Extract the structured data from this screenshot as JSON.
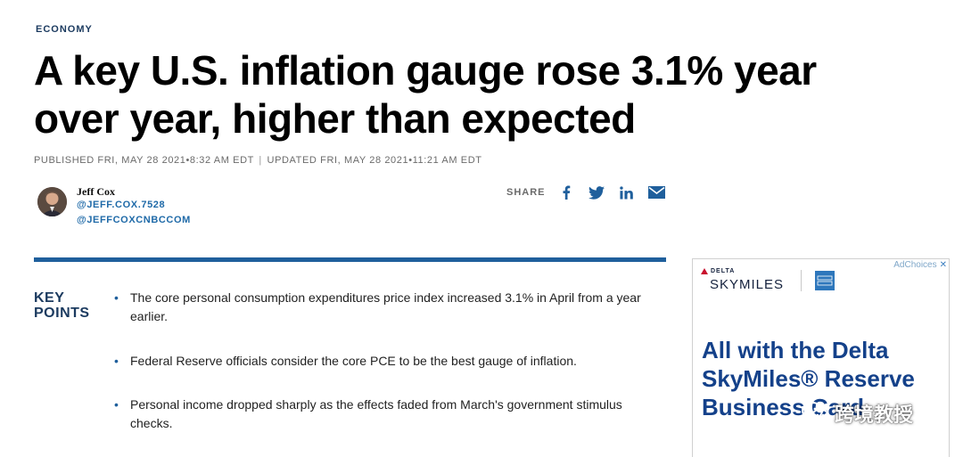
{
  "article": {
    "section": "ECONOMY",
    "headline": "A key U.S. inflation gauge rose 3.1% year over year, higher than expected",
    "published": "PUBLISHED FRI, MAY 28 2021•8:32 AM EDT",
    "separator": "|",
    "updated": "UPDATED FRI, MAY 28 2021•11:21 AM EDT"
  },
  "author": {
    "name": "Jeff Cox",
    "handle_1": "@JEFF.COX.7528",
    "handle_2": "@JEFFCOXCNBCCOM"
  },
  "share": {
    "label": "SHARE",
    "icons": [
      "facebook-icon",
      "twitter-icon",
      "linkedin-icon",
      "email-icon"
    ]
  },
  "key_points": {
    "title_line1": "KEY",
    "title_line2": "POINTS",
    "bullet": "•",
    "items": [
      "The core personal consumption expenditures price index increased 3.1% in April from a year earlier.",
      "Federal Reserve officials consider the core PCE to be the best gauge of inflation.",
      "Personal income dropped sharply as the effects faded from March's government stimulus checks."
    ]
  },
  "ad": {
    "adchoices_label": "AdChoices",
    "close_glyph": "✕",
    "brand_small": "DELTA",
    "brand_program": "SKYMILES",
    "amex_text": "AMERICAN EXPRESS",
    "headline": "All with the Delta SkyMiles® Reserve Business Card"
  },
  "watermark": {
    "text": "跨境教授"
  },
  "colors": {
    "accent": "#1f5f9c",
    "kicker": "#1b3a5f",
    "ad_headline": "#14418a"
  }
}
